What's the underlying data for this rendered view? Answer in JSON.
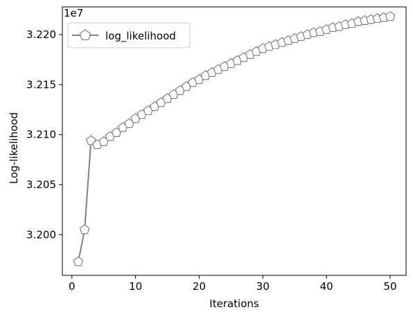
{
  "chart_data": {
    "type": "line",
    "title": "",
    "xlabel": "Iterations",
    "ylabel": "Log-likelihood",
    "y_offset_label": "1e7",
    "xlim": [
      -1.5,
      52.5
    ],
    "ylim": [
      31.9594,
      32.2276
    ],
    "x_ticks": [
      0,
      10,
      20,
      30,
      40,
      50
    ],
    "y_ticks": [
      32.0,
      32.05,
      32.1,
      32.15,
      32.2
    ],
    "y_tick_labels": [
      "3.200",
      "3.205",
      "3.210",
      "3.215",
      "3.220"
    ],
    "grid": false,
    "legend_position": "top-left",
    "series": [
      {
        "name": "log_likelihood",
        "color": "#808080",
        "marker": "pentagon",
        "marker_face": "#ffffff",
        "x": [
          1,
          2,
          3,
          4,
          5,
          6,
          7,
          8,
          9,
          10,
          11,
          12,
          13,
          14,
          15,
          16,
          17,
          18,
          19,
          20,
          21,
          22,
          23,
          24,
          25,
          26,
          27,
          28,
          29,
          30,
          31,
          32,
          33,
          34,
          35,
          36,
          37,
          38,
          39,
          40,
          41,
          42,
          43,
          44,
          45,
          46,
          47,
          48,
          49,
          50
        ],
        "values": [
          31.973,
          32.005,
          32.094,
          32.09,
          32.093,
          32.098,
          32.102,
          32.107,
          32.111,
          32.116,
          32.12,
          32.124,
          32.128,
          32.132,
          32.136,
          32.14,
          32.144,
          32.148,
          32.152,
          32.155,
          32.159,
          32.162,
          32.165,
          32.168,
          32.171,
          32.174,
          32.177,
          32.18,
          32.183,
          32.186,
          32.188,
          32.19,
          32.192,
          32.194,
          32.196,
          32.198,
          32.2,
          32.202,
          32.203,
          32.205,
          32.207,
          32.208,
          32.21,
          32.211,
          32.213,
          32.214,
          32.215,
          32.216,
          32.217,
          32.218
        ]
      }
    ]
  }
}
